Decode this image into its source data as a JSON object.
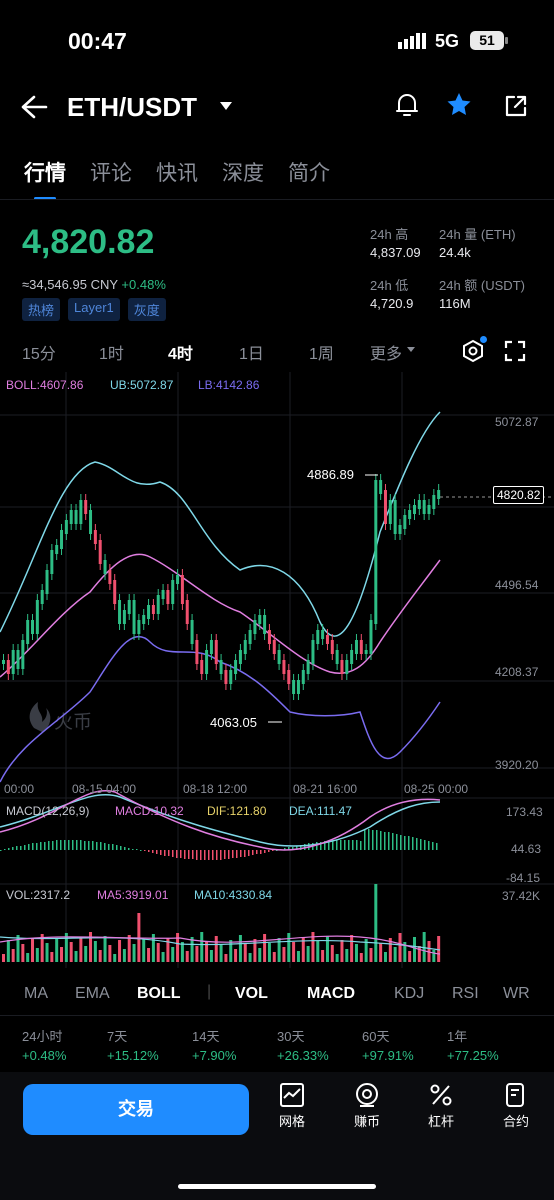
{
  "status": {
    "time": "00:47",
    "network": "5G",
    "battery": "51"
  },
  "header": {
    "title": "ETH/USDT"
  },
  "tabs": [
    "行情",
    "评论",
    "快讯",
    "深度",
    "简介"
  ],
  "ticker": {
    "price": "4,820.82",
    "cny": "≈34,546.95 CNY",
    "change": "+0.48%",
    "tags": [
      "热榜",
      "Layer1",
      "灰度"
    ],
    "stats": [
      {
        "label": "24h 高",
        "value": "4,837.09"
      },
      {
        "label": "24h 量 (ETH)",
        "value": "24.4k"
      },
      {
        "label": "24h 低",
        "value": "4,720.9"
      },
      {
        "label": "24h 额 (USDT)",
        "value": "116M"
      }
    ]
  },
  "periods": [
    "15分",
    "1时",
    "4时",
    "1日",
    "1周",
    "更多"
  ],
  "active_period": "4时",
  "chart": {
    "boll_legend": {
      "boll": "BOLL:4607.86",
      "ub": "UB:5072.87",
      "lb": "LB:4142.86"
    },
    "price_axis": [
      "5072.87",
      "4496.54",
      "4208.37",
      "3920.20"
    ],
    "current_price_label": "4820.82",
    "high_label": "4886.89",
    "low_label": "4063.05",
    "watermark": "火币",
    "time_axis": [
      "00:00",
      "08-15 04:00",
      "08-18 12:00",
      "08-21 16:00",
      "08-25 00:00"
    ],
    "macd_legend": {
      "name": "MACD(12,26,9)",
      "macd": "MACD:10.32",
      "dif": "DIF:121.80",
      "dea": "DEA:111.47"
    },
    "macd_axis": [
      "173.43",
      "44.63",
      "-84.15"
    ],
    "vol_legend": {
      "vol": "VOL:2317.2",
      "ma5": "MA5:3919.01",
      "ma10": "MA10:4330.84"
    },
    "vol_axis": "37.42K",
    "colors": {
      "up": "#2dbd85",
      "down": "#f0506e",
      "boll": "#e07ee0",
      "ub": "#7fd8e8",
      "lb": "#7a6cf0"
    }
  },
  "indicators": [
    "MA",
    "EMA",
    "BOLL",
    "VOL",
    "MACD",
    "KDJ",
    "RSI",
    "WR"
  ],
  "performance": [
    {
      "label": "24小时",
      "value": "+0.48%"
    },
    {
      "label": "7天",
      "value": "+15.12%"
    },
    {
      "label": "14天",
      "value": "+7.90%"
    },
    {
      "label": "30天",
      "value": "+26.33%"
    },
    {
      "label": "60天",
      "value": "+97.91%"
    },
    {
      "label": "1年",
      "value": "+77.25%"
    }
  ],
  "bottom": {
    "trade_label": "交易",
    "items": [
      {
        "label": "网格",
        "icon": "grid-trading-icon"
      },
      {
        "label": "赚币",
        "icon": "earn-icon"
      },
      {
        "label": "杠杆",
        "icon": "leverage-icon"
      },
      {
        "label": "合约",
        "icon": "contract-icon"
      }
    ]
  }
}
